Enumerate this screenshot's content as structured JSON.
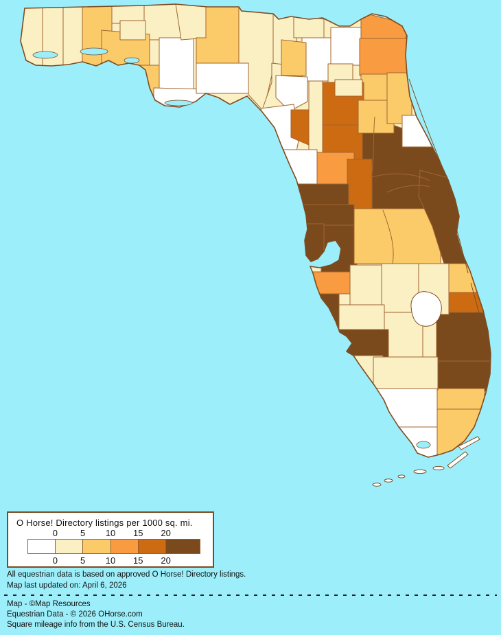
{
  "map": {
    "region_depicted": "Florida counties choropleth",
    "water_color": "#9CEFFA",
    "county_border_color": "#A2652F",
    "coast_border_color": "#7F4B20",
    "palette": [
      "#FFFFFF",
      "#FAF0C4",
      "#FCCB69",
      "#F89B41",
      "#CC6B11",
      "#7A4A1D"
    ],
    "class_bounds": [
      "0",
      "0-5",
      "5-10",
      "10-15",
      "15-20",
      "20+"
    ],
    "regions": {
      "escambia": 1,
      "santa-rosa": 1,
      "okaloosa": 1,
      "walton": 2,
      "holmes": 1,
      "washington": 1,
      "jackson": 1,
      "calhoun": 1,
      "bay": 2,
      "gulf": 2,
      "liberty": 0,
      "franklin": 0,
      "gadsden": 1,
      "leon": 2,
      "wakulla": 0,
      "jefferson": 1,
      "madison": 1,
      "taylor": 1,
      "hamilton": 1,
      "columbia": 0,
      "suwannee": 2,
      "lafayette": 0,
      "dixie": 0,
      "baker": 0,
      "union": 1,
      "nassau": 3,
      "duval": 3,
      "clay": 2,
      "central-lake-orange-volusia": 5,
      "marion": 4,
      "alachua": 4,
      "bradford": 1,
      "gilchrist": 1,
      "citrus": 3,
      "levy": 0,
      "sumter": 4,
      "hernando": 5,
      "pasco": 5,
      "hillsborough": 5,
      "pinellas": 5,
      "polk": 2,
      "brevard": 5,
      "indian-river": 2,
      "st-lucie": 4,
      "martin": 5,
      "palm-beach": 5,
      "broward": 2,
      "manatee": 3,
      "hardee": 1,
      "highlands": 1,
      "okeechobee": 1,
      "glades": 1,
      "desoto": 1,
      "sarasota": 5,
      "charlotte": 5,
      "lee": 1,
      "hendry": 1,
      "collier": 0,
      "monroe": 0,
      "miami-dade": 2,
      "putnam": 2,
      "st-johns": 2,
      "flagler": 0
    }
  },
  "legend": {
    "title": "O Horse! Directory listings per 1000 sq. mi.",
    "ticks": [
      "0",
      "5",
      "10",
      "15",
      "20"
    ]
  },
  "notes": [
    "All equestrian data is based on approved O Horse! Directory listings.",
    "Map last updated on: April 6, 2026"
  ],
  "credits": [
    "Map - ©Map Resources",
    "Equestrian Data - © 2026 OHorse.com",
    "Square mileage info from the U.S. Census Bureau."
  ]
}
